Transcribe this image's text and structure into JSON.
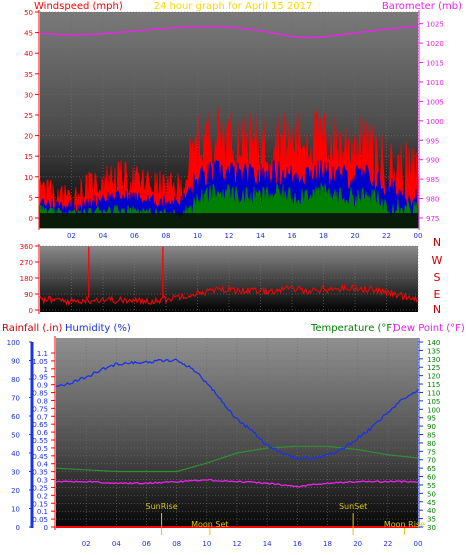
{
  "title": "24 hour graph for   April 15 2017",
  "colors": {
    "wind_speed": "#ff0000",
    "wind_avg": "#0000cc",
    "wind_low": "#008000",
    "barometer": "#ee22ee",
    "humidity": "#1a33e6",
    "temperature": "#1a33e6",
    "dew_point": "#ee22ee",
    "outside_temp_band": "#2f8f2f",
    "rainfall": "#ff0000",
    "sun_moon": "#d8c700",
    "title": "#ffd700"
  },
  "top_panel": {
    "left_label": "Windspeed (mph)",
    "right_label": "Barometer (mb)",
    "left_ticks": [
      "0",
      "5",
      "10",
      "15",
      "20",
      "25",
      "30",
      "35",
      "40",
      "45",
      "50"
    ],
    "right_ticks": [
      "975",
      "980",
      "985",
      "990",
      "995",
      "1000",
      "1005",
      "1010",
      "1015",
      "1020",
      "1025"
    ],
    "x_ticks": [
      "02",
      "04",
      "06",
      "08",
      "10",
      "12",
      "14",
      "16",
      "18",
      "20",
      "22",
      "00"
    ]
  },
  "dir_panel": {
    "left_ticks": [
      "0",
      "90",
      "180",
      "270",
      "360"
    ],
    "right_labels": [
      "N",
      "W",
      "S",
      "E",
      "N"
    ]
  },
  "bottom_panel": {
    "label_rain": "Rainfall (.in)",
    "label_humidity": "Humidity (%)",
    "label_temp": "Temperature (°F)",
    "label_dew": "Dew Point (°F)",
    "humidity_ticks": [
      "0",
      "10",
      "20",
      "30",
      "40",
      "50",
      "60",
      "70",
      "80",
      "90",
      "100"
    ],
    "rain_ticks": [
      "0",
      "0.05",
      "0.1",
      "0.15",
      "0.2",
      "0.25",
      "0.3",
      "0.35",
      "0.4",
      "0.45",
      "0.5",
      "0.55",
      "0.6",
      "0.65",
      "0.7",
      "0.75",
      "0.8",
      "0.85",
      "0.9",
      "0.95",
      "1",
      "1.05",
      "1.1"
    ],
    "temp_ticks": [
      "30",
      "35",
      "40",
      "45",
      "50",
      "55",
      "60",
      "65",
      "70",
      "75",
      "80",
      "85",
      "90",
      "95",
      "100",
      "105",
      "110",
      "115",
      "120",
      "125",
      "130",
      "135",
      "140"
    ],
    "x_ticks": [
      "02",
      "04",
      "06",
      "08",
      "10",
      "12",
      "14",
      "16",
      "18",
      "20",
      "22",
      "00"
    ],
    "events": [
      {
        "label": "SunRise",
        "hour": 7.0
      },
      {
        "label": "Moon Set",
        "hour": 10.2
      },
      {
        "label": "SunSet",
        "hour": 19.7
      },
      {
        "label": "Moon Rise",
        "hour": 23.1
      }
    ]
  },
  "chart_data": [
    {
      "type": "line",
      "x_unit": "hour of day",
      "ylabel": "Windspeed (mph)",
      "ylim": [
        0,
        50
      ],
      "y2label": "Barometer (mb)",
      "y2lim": [
        975,
        1028
      ],
      "series": [
        {
          "name": "Windspeed (mph)",
          "hours": [
            0,
            1,
            2,
            3,
            4,
            5,
            6,
            7,
            8,
            9,
            10,
            11,
            12,
            13,
            14,
            15,
            16,
            17,
            18,
            19,
            20,
            21,
            22,
            23,
            24
          ],
          "values": [
            7,
            5,
            5,
            7,
            9,
            10,
            9,
            8,
            7,
            7,
            17,
            20,
            19,
            18,
            17,
            19,
            18,
            19,
            19,
            17,
            18,
            16,
            12,
            11,
            10
          ]
        },
        {
          "name": "",
          "hours": [
            0,
            1,
            2,
            3,
            4,
            5,
            6,
            7,
            8,
            9,
            10,
            11,
            12,
            13,
            14,
            15,
            16,
            17,
            18,
            19,
            20,
            21,
            22,
            23,
            24
          ],
          "values": [
            4,
            3,
            3,
            3,
            5,
            5,
            5,
            4,
            4,
            4,
            9,
            11,
            11,
            10,
            10,
            11,
            10,
            11,
            11,
            10,
            10,
            10,
            7,
            6,
            5
          ]
        },
        {
          "name": "",
          "hours": [
            0,
            1,
            2,
            3,
            4,
            5,
            6,
            7,
            8,
            9,
            10,
            11,
            12,
            13,
            14,
            15,
            16,
            17,
            18,
            19,
            20,
            21,
            22,
            23,
            24
          ],
          "values": [
            2,
            1,
            1,
            1,
            2,
            2,
            2,
            1,
            1,
            1,
            4,
            6,
            6,
            5,
            5,
            6,
            5,
            6,
            6,
            5,
            5,
            5,
            3,
            3,
            2
          ]
        },
        {
          "name": "Barometer (mb)",
          "hours": [
            0,
            2,
            4,
            6,
            8,
            10,
            12,
            14,
            16,
            17,
            18,
            20,
            22,
            24
          ],
          "values": [
            1022.5,
            1022.1,
            1022.4,
            1023.1,
            1023.8,
            1024.3,
            1024.2,
            1023.2,
            1021.7,
            1021.4,
            1021.6,
            1022.6,
            1023.6,
            1024.4
          ]
        }
      ]
    },
    {
      "type": "line",
      "x_unit": "hour of day",
      "ylabel": "",
      "ylim": [
        0,
        360
      ],
      "series": [
        {
          "name": "",
          "hours": [
            0,
            1,
            2,
            3,
            4,
            5,
            6,
            7,
            8,
            9,
            10,
            11,
            12,
            13,
            14,
            15,
            16,
            17,
            18,
            19,
            20,
            21,
            22,
            23,
            24
          ],
          "values": [
            60,
            55,
            50,
            55,
            60,
            55,
            50,
            50,
            60,
            80,
            95,
            110,
            115,
            110,
            105,
            110,
            120,
            110,
            115,
            120,
            125,
            115,
            100,
            80,
            65
          ]
        }
      ]
    },
    {
      "type": "line",
      "x_unit": "hour of day",
      "ylabel": "Humidity (%)",
      "ylim": [
        0,
        100
      ],
      "y2label": "Temperature (°F)",
      "y2lim": [
        30,
        140
      ],
      "series": [
        {
          "name": "Humidity (%)",
          "hours": [
            0,
            1,
            2,
            3,
            4,
            5,
            6,
            7,
            8,
            9,
            10,
            11,
            12,
            13,
            14,
            15,
            16,
            17,
            18,
            19,
            20,
            21,
            22,
            23,
            24
          ],
          "values": [
            76,
            78,
            81,
            85,
            88,
            89,
            89,
            90,
            90,
            86,
            78,
            68,
            58,
            52,
            44,
            40,
            37,
            37,
            39,
            42,
            48,
            54,
            62,
            69,
            74
          ]
        },
        {
          "name": "",
          "hours": [
            0,
            2,
            4,
            6,
            8,
            10,
            12,
            14,
            16,
            18,
            20,
            22,
            24
          ],
          "values": [
            65,
            64,
            63,
            63,
            63,
            68,
            74,
            77,
            78,
            78,
            76,
            73,
            71
          ]
        },
        {
          "name": "",
          "hours": [
            0,
            2,
            4,
            6,
            8,
            10,
            12,
            14,
            16,
            18,
            20,
            22,
            24
          ],
          "values": [
            57,
            57,
            56,
            56,
            57,
            58,
            57,
            56,
            54,
            56,
            57,
            57,
            57
          ]
        }
      ]
    }
  ]
}
